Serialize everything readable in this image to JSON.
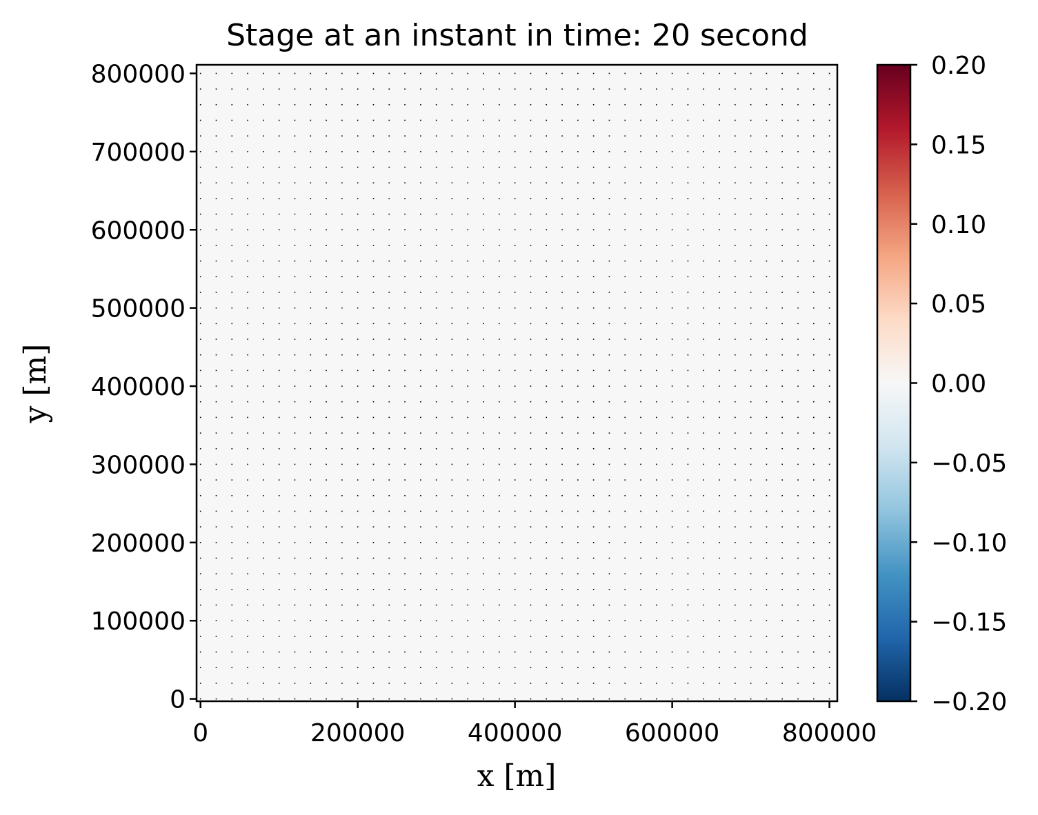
{
  "chart_data": {
    "type": "heatmap",
    "title": "Stage at an instant in time: 20 second",
    "xlabel": "x [m]",
    "ylabel": "y [m]",
    "xlim": [
      -5000,
      810000
    ],
    "ylim": [
      -3000,
      811000
    ],
    "xticks": [
      0,
      200000,
      400000,
      600000,
      800000
    ],
    "xtick_labels": [
      "0",
      "200000",
      "400000",
      "600000",
      "800000"
    ],
    "yticks": [
      0,
      100000,
      200000,
      300000,
      400000,
      500000,
      600000,
      700000,
      800000
    ],
    "ytick_labels": [
      "0",
      "100000",
      "200000",
      "300000",
      "400000",
      "500000",
      "600000",
      "700000",
      "800000"
    ],
    "field": {
      "description_value": "stage approximately 0 everywhere",
      "value_range": [
        -0.002,
        0.002
      ],
      "x": [
        0,
        800000
      ],
      "y": [
        0,
        800000
      ],
      "values": [
        [
          0.0
        ]
      ]
    },
    "mesh_points": {
      "x_start": 0,
      "x_end": 810000,
      "x_step": 20000,
      "y_start": 0,
      "y_end": 810000,
      "y_step": 20000,
      "color": "#000000"
    },
    "colorbar": {
      "colormap": "RdBu_r",
      "vmin": -0.2,
      "vmax": 0.2,
      "ticks": [
        -0.2,
        -0.15,
        -0.1,
        -0.05,
        0.0,
        0.05,
        0.1,
        0.15,
        0.2
      ],
      "tick_labels": [
        "−0.20",
        "−0.15",
        "−0.10",
        "−0.05",
        "0.00",
        "0.05",
        "0.10",
        "0.15",
        "0.20"
      ],
      "stops": [
        "#053061",
        "#2166ac",
        "#4393c3",
        "#92c5de",
        "#d1e5f0",
        "#f7f7f7",
        "#fddbc7",
        "#f4a582",
        "#d6604d",
        "#b2182b",
        "#67001f"
      ]
    },
    "grid": false,
    "legend": "none"
  }
}
